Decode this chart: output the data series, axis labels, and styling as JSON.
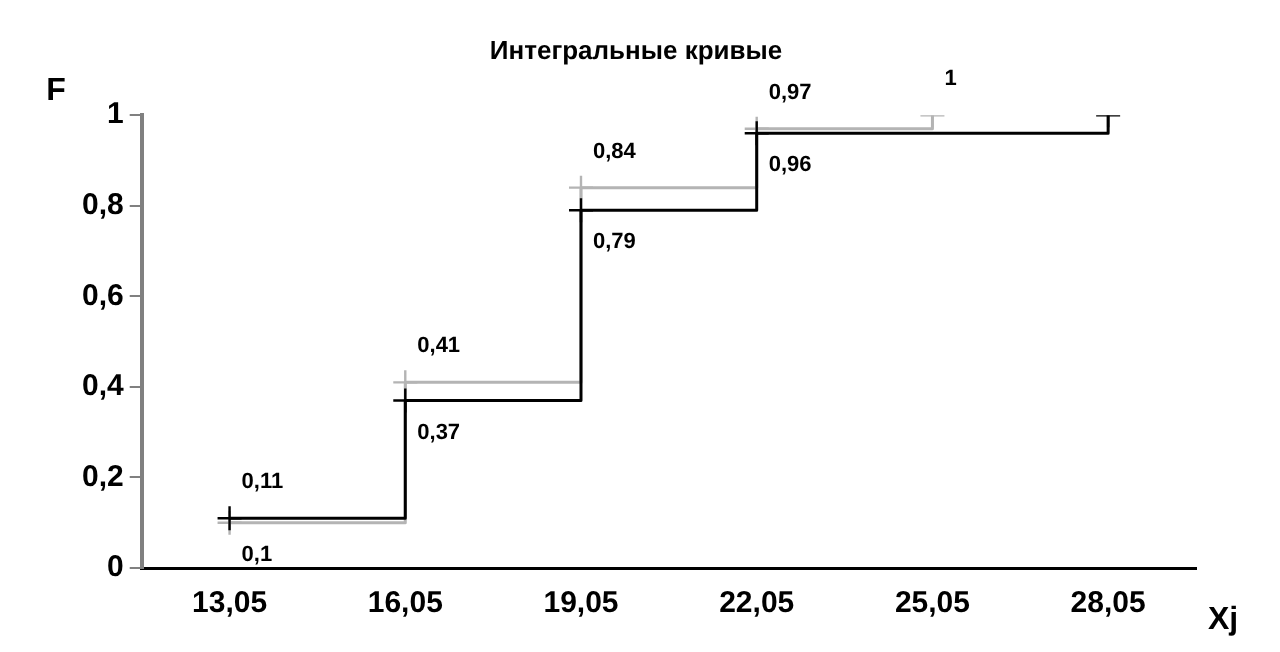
{
  "chart_data": {
    "type": "step",
    "title": "Интегральные кривые",
    "xlabel": "Xj",
    "ylabel": "F",
    "categories": [
      "13,05",
      "16,05",
      "19,05",
      "22,05",
      "25,05",
      "28,05"
    ],
    "series": [
      {
        "color": "#000000",
        "values": [
          0.11,
          0.37,
          0.79,
          0.96,
          null,
          1
        ],
        "value_labels": [
          "0,11",
          "0,37",
          "0,79",
          "0,96",
          null,
          null
        ]
      },
      {
        "color": "#b4b4b4",
        "values": [
          0.1,
          0.41,
          0.84,
          0.97,
          1,
          null
        ],
        "value_labels": [
          "0,1",
          "0,41",
          "0,84",
          "0,97",
          "1",
          null
        ]
      }
    ],
    "ylim": [
      0,
      1
    ],
    "yticks": [
      0,
      {
        "value": 0.2,
        "label": "0,2"
      },
      {
        "value": 0.4,
        "label": "0,4"
      },
      {
        "value": 0.6,
        "label": "0,6"
      },
      {
        "value": 0.8,
        "label": "0,8"
      },
      1
    ],
    "grid": false,
    "legend": false,
    "marker": "cross",
    "line_style": "solid"
  }
}
